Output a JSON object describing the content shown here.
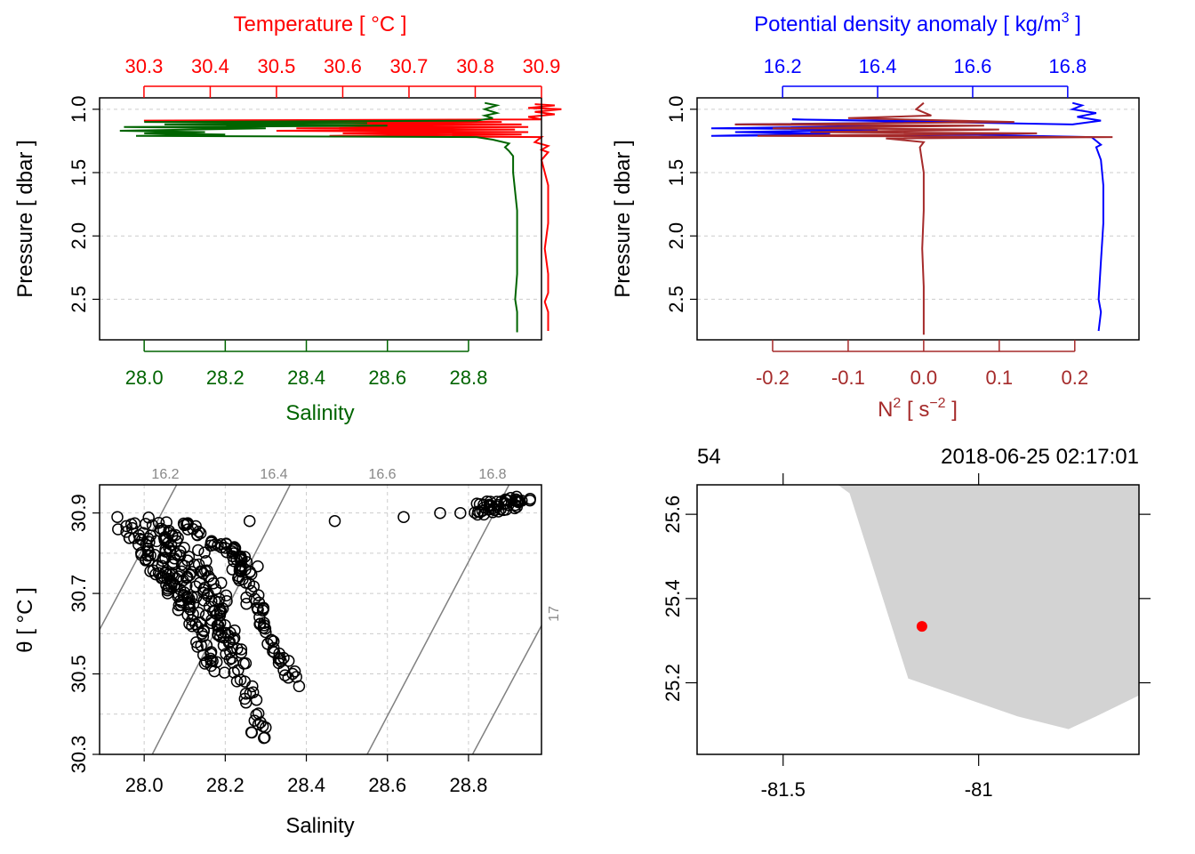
{
  "colors": {
    "temperature": "#ff0000",
    "salinity": "#006400",
    "density": "#0000ff",
    "n2": "#a52a2a",
    "grid": "#cccccc",
    "isopycnal": "#808080",
    "land": "#d3d3d3",
    "station": "#ff0000",
    "frame": "#000000"
  },
  "chart_data": [
    {
      "panel": "top-left",
      "type": "line",
      "title": "",
      "top_axis": {
        "label": "Temperature [ °C ]",
        "ticks": [
          "30.3",
          "30.4",
          "30.5",
          "30.6",
          "30.7",
          "30.8",
          "30.9"
        ],
        "range": [
          30.233,
          30.9
        ]
      },
      "bottom_axis": {
        "label": "Salinity",
        "ticks": [
          "28.0",
          "28.2",
          "28.4",
          "28.6",
          "28.8"
        ],
        "range": [
          27.89,
          28.98
        ]
      },
      "y_axis": {
        "label": "Pressure [ dbar ]",
        "ticks": [
          "1.0",
          "1.5",
          "2.0",
          "2.5"
        ],
        "range": [
          0.91,
          2.82
        ],
        "inverted": true
      },
      "grid": true,
      "series": [
        {
          "name": "Temperature",
          "axis": "top",
          "points": [
            [
              30.89,
              0.96
            ],
            [
              30.92,
              0.97
            ],
            [
              30.88,
              0.99
            ],
            [
              30.93,
              1.0
            ],
            [
              30.89,
              1.02
            ],
            [
              30.92,
              1.04
            ],
            [
              30.88,
              1.06
            ],
            [
              30.9,
              1.08
            ],
            [
              30.3,
              1.09
            ],
            [
              30.84,
              1.1
            ],
            [
              30.6,
              1.11
            ],
            [
              30.87,
              1.12
            ],
            [
              30.45,
              1.13
            ],
            [
              30.88,
              1.14
            ],
            [
              30.53,
              1.15
            ],
            [
              30.86,
              1.16
            ],
            [
              30.5,
              1.17
            ],
            [
              30.88,
              1.18
            ],
            [
              30.6,
              1.19
            ],
            [
              30.87,
              1.2
            ],
            [
              30.58,
              1.21
            ],
            [
              30.9,
              1.22
            ],
            [
              30.89,
              1.26
            ],
            [
              30.91,
              1.29
            ],
            [
              30.9,
              1.32
            ],
            [
              30.91,
              1.34
            ],
            [
              30.9,
              1.4
            ],
            [
              30.91,
              1.6
            ],
            [
              30.91,
              1.9
            ],
            [
              30.905,
              2.1
            ],
            [
              30.91,
              2.3
            ],
            [
              30.91,
              2.45
            ],
            [
              30.905,
              2.52
            ],
            [
              30.91,
              2.6
            ],
            [
              30.91,
              2.75
            ]
          ]
        },
        {
          "name": "Salinity",
          "axis": "bottom",
          "points": [
            [
              28.84,
              0.95
            ],
            [
              28.87,
              0.97
            ],
            [
              28.84,
              1.0
            ],
            [
              28.87,
              1.03
            ],
            [
              28.84,
              1.05
            ],
            [
              28.86,
              1.07
            ],
            [
              28.82,
              1.09
            ],
            [
              28.0,
              1.1
            ],
            [
              28.55,
              1.11
            ],
            [
              28.05,
              1.12
            ],
            [
              28.6,
              1.13
            ],
            [
              27.95,
              1.14
            ],
            [
              28.3,
              1.15
            ],
            [
              27.94,
              1.17
            ],
            [
              28.15,
              1.18
            ],
            [
              28.0,
              1.19
            ],
            [
              28.2,
              1.2
            ],
            [
              27.98,
              1.21
            ],
            [
              28.82,
              1.22
            ],
            [
              28.86,
              1.24
            ],
            [
              28.9,
              1.27
            ],
            [
              28.89,
              1.3
            ],
            [
              28.9,
              1.33
            ],
            [
              28.91,
              1.37
            ],
            [
              28.91,
              1.5
            ],
            [
              28.92,
              1.8
            ],
            [
              28.92,
              2.0
            ],
            [
              28.92,
              2.3
            ],
            [
              28.915,
              2.5
            ],
            [
              28.92,
              2.6
            ],
            [
              28.92,
              2.76
            ]
          ]
        }
      ]
    },
    {
      "panel": "top-right",
      "type": "line",
      "title": "",
      "top_axis": {
        "label": "Potential density anomaly [ kg/m",
        "label_sup": "3",
        "label_end": " ]",
        "ticks": [
          "16.2",
          "16.4",
          "16.6",
          "16.8"
        ],
        "range": [
          16.02,
          16.95
        ]
      },
      "bottom_axis": {
        "label": "N",
        "label_sup": "2",
        "label_mid": " [ s",
        "label_sup2": "−2",
        "label_end": " ]",
        "ticks": [
          "-0.2",
          "-0.1",
          "0.0",
          "0.1",
          "0.2"
        ],
        "range": [
          -0.3,
          0.285
        ]
      },
      "y_axis": {
        "label": "Pressure [ dbar ]",
        "ticks": [
          "1.0",
          "1.5",
          "2.0",
          "2.5"
        ],
        "range": [
          0.91,
          2.82
        ],
        "inverted": true
      },
      "grid": true,
      "series": [
        {
          "name": "Potential density anomaly",
          "axis": "top",
          "points": [
            [
              16.81,
              0.95
            ],
            [
              16.83,
              0.97
            ],
            [
              16.81,
              1.0
            ],
            [
              16.86,
              1.03
            ],
            [
              16.82,
              1.06
            ],
            [
              16.87,
              1.09
            ],
            [
              16.81,
              1.12
            ],
            [
              16.22,
              1.08
            ],
            [
              16.6,
              1.1
            ],
            [
              16.1,
              1.12
            ],
            [
              16.5,
              1.13
            ],
            [
              16.05,
              1.15
            ],
            [
              16.4,
              1.16
            ],
            [
              16.1,
              1.18
            ],
            [
              16.3,
              1.19
            ],
            [
              16.05,
              1.21
            ],
            [
              16.6,
              1.2
            ],
            [
              16.85,
              1.22
            ],
            [
              16.86,
              1.25
            ],
            [
              16.87,
              1.28
            ],
            [
              16.86,
              1.3
            ],
            [
              16.87,
              1.4
            ],
            [
              16.875,
              1.6
            ],
            [
              16.875,
              1.9
            ],
            [
              16.87,
              2.2
            ],
            [
              16.865,
              2.5
            ],
            [
              16.87,
              2.6
            ],
            [
              16.865,
              2.75
            ]
          ]
        },
        {
          "name": "N2",
          "axis": "bottom",
          "points": [
            [
              0.0,
              0.95
            ],
            [
              -0.01,
              1.0
            ],
            [
              0.01,
              1.05
            ],
            [
              -0.1,
              1.07
            ],
            [
              0.12,
              1.1
            ],
            [
              -0.25,
              1.12
            ],
            [
              0.08,
              1.13
            ],
            [
              -0.2,
              1.15
            ],
            [
              0.1,
              1.16
            ],
            [
              -0.15,
              1.18
            ],
            [
              0.15,
              1.19
            ],
            [
              -0.22,
              1.21
            ],
            [
              0.25,
              1.22
            ],
            [
              -0.05,
              1.23
            ],
            [
              0.0,
              1.26
            ],
            [
              -0.005,
              1.3
            ],
            [
              0.0,
              1.5
            ],
            [
              0.0,
              1.8
            ],
            [
              -0.002,
              2.1
            ],
            [
              0.0,
              2.4
            ],
            [
              0.0,
              2.6
            ],
            [
              0.0,
              2.78
            ]
          ]
        }
      ]
    },
    {
      "panel": "bottom-left",
      "type": "scatter",
      "title": "",
      "x_axis": {
        "label": "Salinity",
        "ticks": [
          "28.0",
          "28.2",
          "28.4",
          "28.6",
          "28.8"
        ],
        "range": [
          27.89,
          28.98
        ]
      },
      "y_axis": {
        "label": "θ [ °C ]",
        "ticks": [
          "30.3",
          "30.5",
          "30.7",
          "30.9"
        ],
        "grid_values": [
          30.3,
          30.4,
          30.5,
          30.6,
          30.7,
          30.8,
          30.9
        ],
        "range": [
          30.3,
          30.97
        ]
      },
      "grid": true,
      "isopycnal_labels": [
        "16.2",
        "16.4",
        "16.6",
        "16.8",
        "17"
      ],
      "isopycnals": [
        {
          "label": "16.2",
          "p1": [
            27.89,
            30.61
          ],
          "p2": [
            28.08,
            30.97
          ]
        },
        {
          "label": "16.4",
          "p1": [
            28.02,
            30.3
          ],
          "p2": [
            28.36,
            30.97
          ]
        },
        {
          "label": "16.6",
          "p1": [
            28.55,
            30.3
          ],
          "p2": [
            28.9,
            30.97
          ]
        },
        {
          "label": "16.8",
          "p1": [
            28.81,
            30.3
          ],
          "p2": [
            28.98,
            30.62
          ]
        },
        {
          "label": "17",
          "p1": [
            28.98,
            30.2
          ],
          "p2": [
            28.98,
            30.2
          ]
        }
      ],
      "clusters": [
        {
          "from": [
            27.95,
            30.88
          ],
          "to": [
            28.1,
            30.67
          ],
          "n": 60
        },
        {
          "from": [
            28.02,
            30.88
          ],
          "to": [
            28.18,
            30.5
          ],
          "n": 70
        },
        {
          "from": [
            28.05,
            30.88
          ],
          "to": [
            28.22,
            30.55
          ],
          "n": 60
        },
        {
          "from": [
            28.1,
            30.88
          ],
          "to": [
            28.28,
            30.75
          ],
          "n": 40
        },
        {
          "from": [
            28.15,
            30.8
          ],
          "to": [
            28.29,
            30.33
          ],
          "n": 60
        },
        {
          "from": [
            28.2,
            30.82
          ],
          "to": [
            28.37,
            30.48
          ],
          "n": 60
        },
        {
          "from": [
            28.82,
            30.91
          ],
          "to": [
            28.94,
            30.93
          ],
          "n": 50
        }
      ],
      "points": [
        [
          28.26,
          30.88
        ],
        [
          28.47,
          30.88
        ],
        [
          28.64,
          30.89
        ],
        [
          28.73,
          30.9
        ],
        [
          28.78,
          30.9
        ]
      ]
    },
    {
      "panel": "bottom-right",
      "type": "map",
      "title": "",
      "top_left_label": "54",
      "top_right_label": "2018-06-25 02:17:01",
      "x_axis": {
        "ticks": [
          "-81.5",
          "-81"
        ],
        "range": [
          -81.72,
          -80.59
        ]
      },
      "y_axis": {
        "ticks": [
          "25.2",
          "25.4",
          "25.6"
        ],
        "range": [
          25.03,
          25.67
        ]
      },
      "station": {
        "lon": -81.145,
        "lat": 25.334
      },
      "land_polygon": [
        [
          -81.36,
          25.67
        ],
        [
          -81.33,
          25.65
        ],
        [
          -81.18,
          25.21
        ],
        [
          -80.9,
          25.12
        ],
        [
          -80.77,
          25.09
        ],
        [
          -80.7,
          25.12
        ],
        [
          -80.59,
          25.17
        ],
        [
          -80.59,
          25.67
        ]
      ]
    }
  ]
}
